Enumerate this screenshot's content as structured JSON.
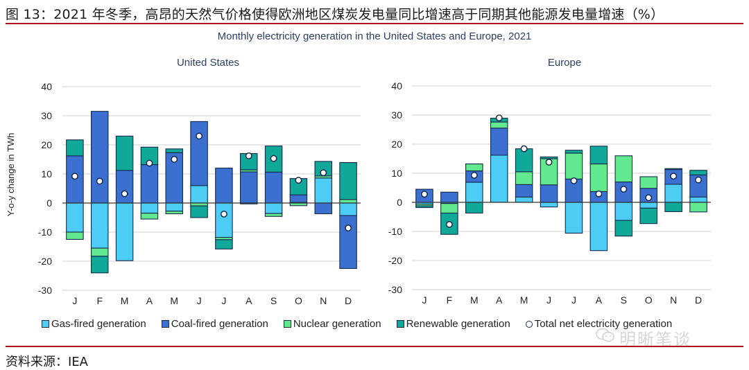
{
  "figure": {
    "title": "图 13：2021 年冬季，高昂的天然气价格使得欧洲地区煤炭发电量同比增速高于同期其他能源发电量增速（%）",
    "source": "资料来源：IEA",
    "watermark": "明晰笔谈",
    "watermark_icon": "wechat-icon"
  },
  "legend": [
    {
      "key": "gas",
      "label": "Gas-fired generation",
      "color": "#4dcdf5",
      "marker": "square"
    },
    {
      "key": "coal",
      "label": "Coal-fired generation",
      "color": "#3b6fd0",
      "marker": "square"
    },
    {
      "key": "nuclear",
      "label": "Nuclear generation",
      "color": "#62e88f",
      "marker": "square"
    },
    {
      "key": "renew",
      "label": "Renewable generation",
      "color": "#10a898",
      "marker": "square"
    },
    {
      "key": "total",
      "label": "Total net electricity generation",
      "color": "#ffffff",
      "marker": "circle"
    }
  ],
  "chart_data": [
    {
      "type": "bar",
      "stacked": true,
      "title": "Monthly electricity generation in the United States and Europe, 2021",
      "subtitle": "United States",
      "ylabel": "Y-o-y change in TWh",
      "xlabel": "",
      "ylim": [
        -30,
        40
      ],
      "yticks": [
        40,
        30,
        20,
        10,
        0,
        -10,
        -20,
        -30
      ],
      "grid": true,
      "categories": [
        "J",
        "F",
        "M",
        "A",
        "M",
        "J",
        "J",
        "A",
        "S",
        "O",
        "N",
        "D"
      ],
      "series": [
        {
          "name": "Gas-fired generation",
          "key": "gas",
          "values": [
            -10,
            -15.5,
            -19.8,
            -3.5,
            -2.8,
            6,
            -11.8,
            -0.3,
            -3.6,
            0.2,
            8.6,
            -4.3
          ]
        },
        {
          "name": "Coal-fired generation",
          "key": "coal",
          "values": [
            16.2,
            31.5,
            11.2,
            13.2,
            17.3,
            22,
            12,
            10.7,
            10.6,
            2.6,
            -3.7,
            -18.2
          ]
        },
        {
          "name": "Nuclear generation",
          "key": "nuclear",
          "values": [
            -2.5,
            -2.8,
            0,
            -2,
            -0.9,
            -1,
            -0.8,
            0.7,
            -1,
            -0.9,
            0.7,
            1.2
          ]
        },
        {
          "name": "Renewable generation",
          "key": "renew",
          "values": [
            5.5,
            -5.7,
            11.8,
            6,
            1.3,
            -4,
            -3.2,
            5.6,
            9,
            5.6,
            5,
            12.7
          ]
        }
      ],
      "total_net_generation": [
        9.2,
        7.5,
        3.2,
        13.7,
        15,
        23,
        -3.8,
        16.2,
        15.3,
        7.8,
        10.4,
        -8.6
      ]
    },
    {
      "type": "bar",
      "stacked": true,
      "title": "Monthly electricity generation in the United States and Europe, 2021",
      "subtitle": "Europe",
      "ylabel": "",
      "xlabel": "",
      "ylim": [
        -30,
        40
      ],
      "yticks": [
        40,
        30,
        20,
        10,
        0,
        -10,
        -20,
        -30
      ],
      "grid": true,
      "categories": [
        "J",
        "F",
        "M",
        "A",
        "M",
        "J",
        "J",
        "A",
        "S",
        "O",
        "N",
        "D"
      ],
      "series": [
        {
          "name": "Gas-fired generation",
          "key": "gas",
          "values": [
            -0.6,
            -0.4,
            6.9,
            16.2,
            1.8,
            -1.6,
            -10.6,
            -16.6,
            -6.2,
            -2,
            6.2,
            1.8
          ]
        },
        {
          "name": "Coal-fired generation",
          "key": "coal",
          "values": [
            4.5,
            3.5,
            3.9,
            9.3,
            4.3,
            6,
            8,
            3.7,
            7,
            4.8,
            5.1,
            7.6
          ]
        },
        {
          "name": "Nuclear generation",
          "key": "nuclear",
          "values": [
            -0.6,
            -3.3,
            2.4,
            2.1,
            4.4,
            9,
            8.9,
            9.5,
            9,
            4,
            0.3,
            -3.3
          ]
        },
        {
          "name": "Renewable generation",
          "key": "renew",
          "values": [
            -0.6,
            -7.3,
            -3.7,
            1.3,
            7.9,
            0.6,
            1,
            6.1,
            -5.4,
            -5.3,
            -3.2,
            1.6
          ]
        }
      ],
      "total_net_generation": [
        2.8,
        -7.6,
        9.3,
        29,
        18.4,
        13.8,
        7.4,
        2.9,
        4.5,
        1.6,
        9,
        7.7
      ]
    }
  ]
}
